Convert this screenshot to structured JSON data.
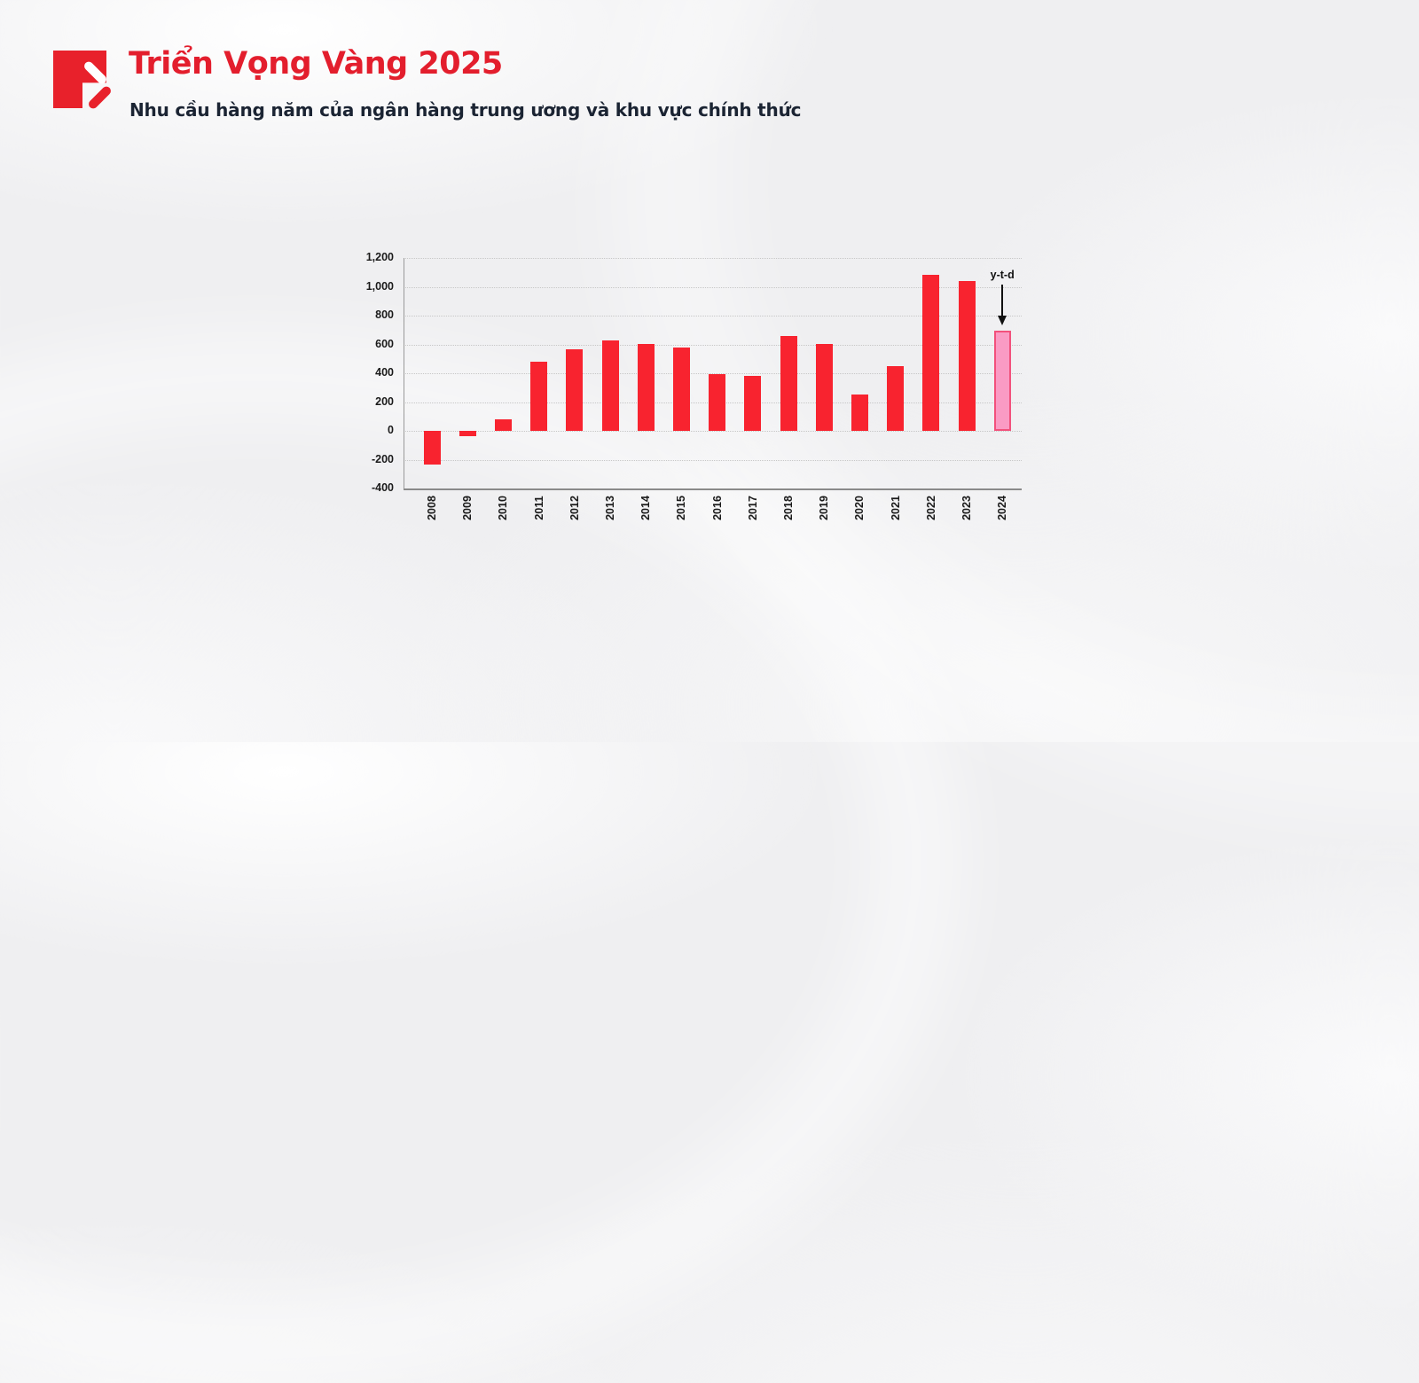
{
  "header": {
    "title": "Triển Vọng Vàng 2025",
    "subtitle": "Nhu cầu hàng năm của ngân hàng trung ương và khu vực chính thức",
    "brand_red": "#e8212b"
  },
  "chart_data": {
    "type": "bar",
    "title": "Nhu cầu hàng năm của ngân hàng trung ương và khu vực chính thức",
    "xlabel": "",
    "ylabel": "",
    "categories": [
      "2008",
      "2009",
      "2010",
      "2011",
      "2012",
      "2013",
      "2014",
      "2015",
      "2016",
      "2017",
      "2018",
      "2019",
      "2020",
      "2021",
      "2022",
      "2023",
      "2024"
    ],
    "values": [
      -235,
      -34,
      79,
      481,
      569,
      629,
      601,
      580,
      395,
      379,
      656,
      605,
      255,
      450,
      1082,
      1037,
      694
    ],
    "ylim": [
      -400,
      1200
    ],
    "yticks": [
      {
        "v": 1200,
        "label": "1,200"
      },
      {
        "v": 1000,
        "label": "1,000"
      },
      {
        "v": 800,
        "label": "800"
      },
      {
        "v": 600,
        "label": "600"
      },
      {
        "v": 400,
        "label": "400"
      },
      {
        "v": 200,
        "label": "200"
      },
      {
        "v": 0,
        "label": "0"
      },
      {
        "v": -200,
        "label": "-200"
      },
      {
        "v": -400,
        "label": "-400"
      }
    ],
    "grid": true,
    "legend": false,
    "bar_color": "#f8232f",
    "ytd_bar_fill": "#fa9bc4",
    "ytd_bar_border": "#f2517c",
    "annotation": {
      "label": "y-t-d",
      "target_category": "2024"
    }
  }
}
